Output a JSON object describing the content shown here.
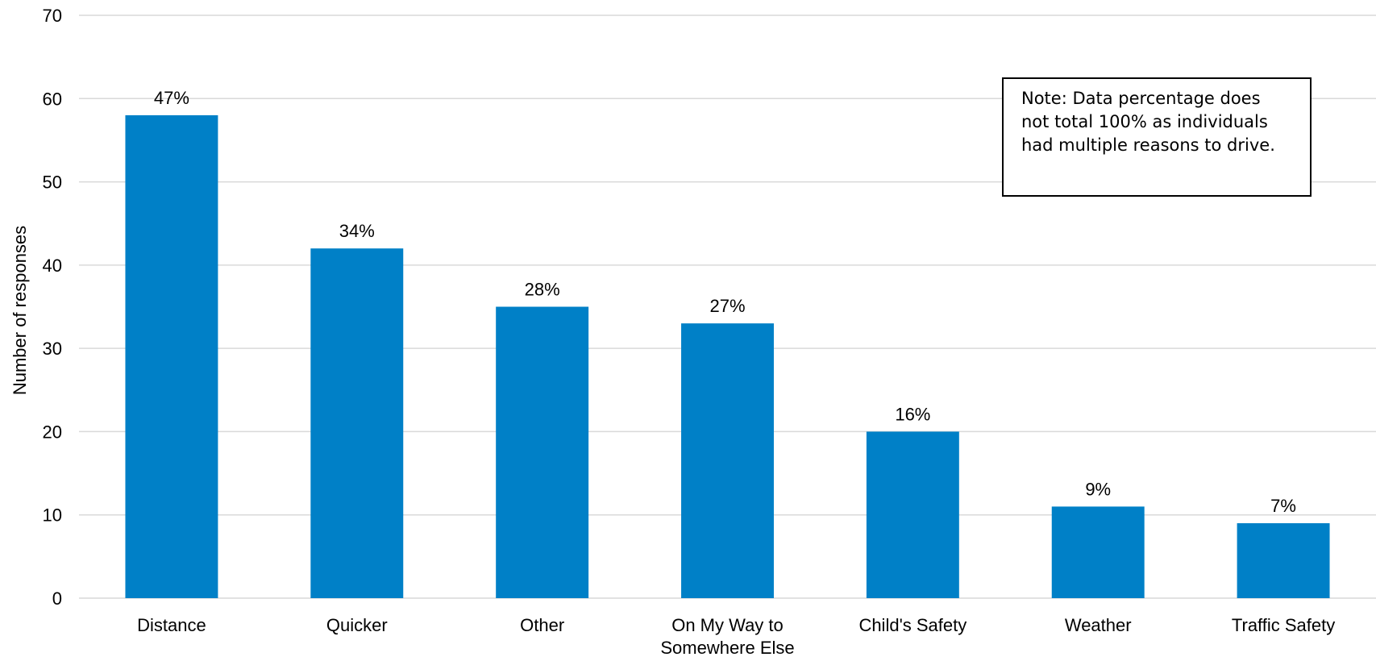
{
  "chart_data": {
    "type": "bar",
    "categories": [
      [
        "Distance"
      ],
      [
        "Quicker"
      ],
      [
        "Other"
      ],
      [
        "On My Way to",
        "Somewhere Else"
      ],
      [
        "Child's Safety"
      ],
      [
        "Weather"
      ],
      [
        "Traffic Safety"
      ]
    ],
    "values": [
      58,
      42,
      35,
      33,
      20,
      11,
      9
    ],
    "data_labels": [
      "47%",
      "34%",
      "28%",
      "27%",
      "16%",
      "9%",
      "7%"
    ],
    "ylabel": "Number of responses",
    "xlabel": "",
    "ylim": [
      0,
      70
    ],
    "yticks": [
      0,
      10,
      20,
      30,
      40,
      50,
      60,
      70
    ],
    "grid": true,
    "bar_color": "#0080c7",
    "note": "Note: Data percentage does not total 100% as individuals had multiple reasons to drive."
  }
}
